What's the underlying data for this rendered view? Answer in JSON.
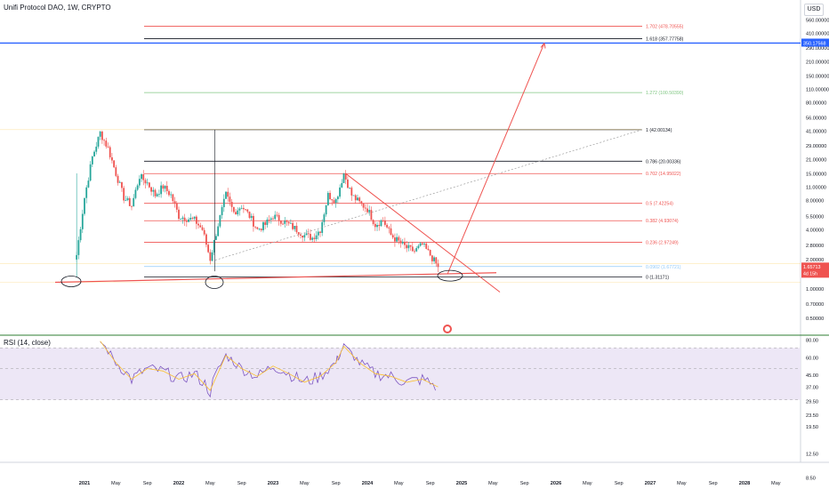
{
  "header": {
    "title": "Unifi Protocol DAO, 1W, CRYPTO",
    "currency": "USD"
  },
  "rsi": {
    "label": "RSI (14, close)"
  },
  "price_scale": {
    "labels": [
      "560.00000",
      "410.00000",
      "290.00000",
      "210.00000",
      "150.00000",
      "110.00000",
      "80.00000",
      "56.00000",
      "41.00000",
      "29.00000",
      "21.00000",
      "15.00000",
      "11.00000",
      "8.00000",
      "5.50000",
      "4.00000",
      "2.80000",
      "2.00000",
      "1.40000",
      "1.00000",
      "0.70000",
      "0.50000"
    ],
    "blue_line_badge": "350.17568",
    "current_price_badge": "1.65713",
    "current_time_badge": "4d 15h"
  },
  "rsi_scale": {
    "labels": [
      "80.00",
      "60.00",
      "45.00",
      "37.00",
      "29.50",
      "23.50",
      "19.50",
      "12.50",
      "8.50"
    ]
  },
  "time_axis": {
    "labels": [
      "2021",
      "May",
      "Sep",
      "2022",
      "May",
      "Sep",
      "2023",
      "May",
      "Sep",
      "2024",
      "May",
      "Sep",
      "2025",
      "May",
      "Sep",
      "2026",
      "May",
      "Sep",
      "2027",
      "May",
      "Sep",
      "2028",
      "May"
    ]
  },
  "fib_levels": [
    {
      "label": "1.702 (478.70555)",
      "value": 478.70555,
      "color": "#ef5350"
    },
    {
      "label": "1.618 (357.77758)",
      "value": 357.77758,
      "color": "#131722"
    },
    {
      "label": "1.272 (100.50390)",
      "value": 100.5039,
      "color": "#81c784"
    },
    {
      "label": "1 (42.00134)",
      "value": 42.00134,
      "color": "#131722"
    },
    {
      "label": "0.786 (20.00336)",
      "value": 20.00336,
      "color": "#131722"
    },
    {
      "label": "0.702 (14.95022)",
      "value": 14.95022,
      "color": "#ef5350"
    },
    {
      "label": "0.5 (7.42254)",
      "value": 7.42254,
      "color": "#ef5350"
    },
    {
      "label": "0.382 (4.93074)",
      "value": 4.93074,
      "color": "#ef5350"
    },
    {
      "label": "0.236 (2.97249)",
      "value": 2.97249,
      "color": "#ef5350"
    },
    {
      "label": "0.0902 (1.67721)",
      "value": 1.67721,
      "color": "#90caf9"
    },
    {
      "label": "0 (1.31171)",
      "value": 1.31171,
      "color": "#131722"
    }
  ],
  "colors": {
    "up": "#26a69a",
    "down": "#ef5350",
    "blue_line": "#2962ff",
    "rsi_line": "#7e57c2",
    "rsi_ma": "#fbc02d",
    "rsi_band": "#ede7f6",
    "trend": "#ef5350"
  },
  "chart_data": {
    "type": "candlestick",
    "title": "Unifi Protocol DAO, 1W, CRYPTO",
    "y_scale": "log",
    "ylim": [
      0.4,
      700
    ],
    "approx_close_path": [
      {
        "date": "2020-12",
        "close": 2.2
      },
      {
        "date": "2021-01",
        "close": 8.5
      },
      {
        "date": "2021-02",
        "close": 22
      },
      {
        "date": "2021-03",
        "close": 39
      },
      {
        "date": "2021-04",
        "close": 27
      },
      {
        "date": "2021-05",
        "close": 15
      },
      {
        "date": "2021-06",
        "close": 8.5
      },
      {
        "date": "2021-07",
        "close": 7.0
      },
      {
        "date": "2021-08",
        "close": 14
      },
      {
        "date": "2021-09",
        "close": 12
      },
      {
        "date": "2021-10",
        "close": 9
      },
      {
        "date": "2021-11",
        "close": 11
      },
      {
        "date": "2021-12",
        "close": 9
      },
      {
        "date": "2022-01",
        "close": 5.5
      },
      {
        "date": "2022-02",
        "close": 5.2
      },
      {
        "date": "2022-03",
        "close": 5.0
      },
      {
        "date": "2022-04",
        "close": 4.0
      },
      {
        "date": "2022-05",
        "close": 2.0
      },
      {
        "date": "2022-06",
        "close": 4.5
      },
      {
        "date": "2022-07",
        "close": 9
      },
      {
        "date": "2022-08",
        "close": 6
      },
      {
        "date": "2022-09",
        "close": 7
      },
      {
        "date": "2022-10",
        "close": 5.5
      },
      {
        "date": "2022-11",
        "close": 4.0
      },
      {
        "date": "2022-12",
        "close": 4.5
      },
      {
        "date": "2023-01",
        "close": 5.5
      },
      {
        "date": "2023-02",
        "close": 5.0
      },
      {
        "date": "2023-03",
        "close": 4.5
      },
      {
        "date": "2023-04",
        "close": 4.0
      },
      {
        "date": "2023-05",
        "close": 3.5
      },
      {
        "date": "2023-06",
        "close": 3.3
      },
      {
        "date": "2023-07",
        "close": 4.0
      },
      {
        "date": "2023-08",
        "close": 9
      },
      {
        "date": "2023-09",
        "close": 8
      },
      {
        "date": "2023-10",
        "close": 15
      },
      {
        "date": "2023-11",
        "close": 9
      },
      {
        "date": "2023-12",
        "close": 7.5
      },
      {
        "date": "2024-01",
        "close": 6.5
      },
      {
        "date": "2024-02",
        "close": 4.5
      },
      {
        "date": "2024-03",
        "close": 5.0
      },
      {
        "date": "2024-04",
        "close": 3.5
      },
      {
        "date": "2024-05",
        "close": 3.0
      },
      {
        "date": "2024-06",
        "close": 2.6
      },
      {
        "date": "2024-07",
        "close": 2.4
      },
      {
        "date": "2024-08",
        "close": 2.8
      },
      {
        "date": "2024-09",
        "close": 2.2
      },
      {
        "date": "2024-10",
        "close": 1.66
      }
    ],
    "rsi": {
      "label": "RSI (14, close)",
      "levels": [
        70,
        50,
        30
      ],
      "approx_values": [
        {
          "date": "2021-03",
          "value": 78
        },
        {
          "date": "2021-05",
          "value": 55
        },
        {
          "date": "2021-07",
          "value": 42
        },
        {
          "date": "2021-09",
          "value": 50
        },
        {
          "date": "2021-11",
          "value": 48
        },
        {
          "date": "2022-01",
          "value": 42
        },
        {
          "date": "2022-03",
          "value": 46
        },
        {
          "date": "2022-05",
          "value": 35
        },
        {
          "date": "2022-07",
          "value": 62
        },
        {
          "date": "2022-09",
          "value": 50
        },
        {
          "date": "2022-11",
          "value": 44
        },
        {
          "date": "2023-01",
          "value": 52
        },
        {
          "date": "2023-03",
          "value": 46
        },
        {
          "date": "2023-05",
          "value": 40
        },
        {
          "date": "2023-07",
          "value": 44
        },
        {
          "date": "2023-09",
          "value": 55
        },
        {
          "date": "2023-10",
          "value": 72
        },
        {
          "date": "2023-12",
          "value": 55
        },
        {
          "date": "2024-02",
          "value": 46
        },
        {
          "date": "2024-04",
          "value": 44
        },
        {
          "date": "2024-06",
          "value": 40
        },
        {
          "date": "2024-08",
          "value": 42
        },
        {
          "date": "2024-10",
          "value": 37
        }
      ]
    }
  }
}
